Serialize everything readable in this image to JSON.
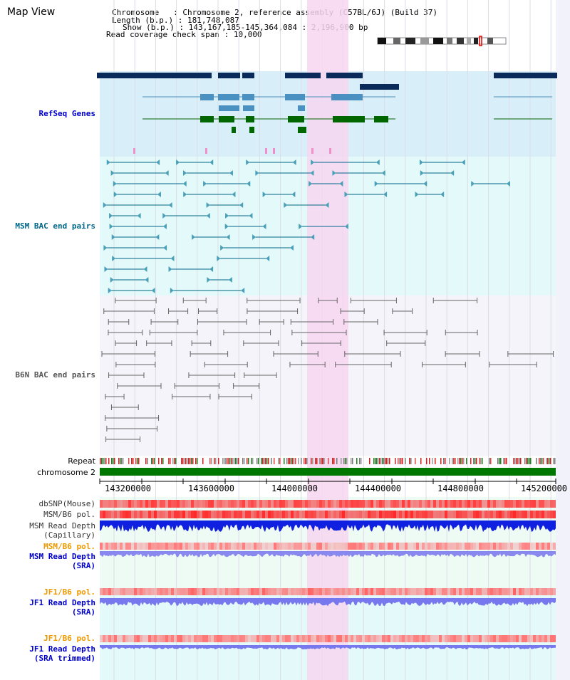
{
  "app": {
    "title": "Map View"
  },
  "info": {
    "chromosome_label": "Chromosome   ",
    "chromosome_value": ": Chromosome 2, reference assembly (C57BL/6J) (Build 37)",
    "length_label": "Length (b.p.)",
    "length_value": ": 181,748,087",
    "show_label": "Show (b.p.)",
    "show_value": ": 143,167,185-145,364,084 : 2,196,900 bp",
    "coverage_label": "Read coverage check span",
    "coverage_value": ": 10,000"
  },
  "tracks": {
    "refseq": {
      "label": "RefSeq Genes",
      "color": "#0000cc"
    },
    "msm_bac": {
      "label": "MSM BAC end pairs",
      "color": "#006688"
    },
    "b6n_bac": {
      "label": "B6N BAC end pairs",
      "color": "#555555"
    },
    "repeat": {
      "label": "Repeat"
    },
    "chromosome": {
      "label": "chromosome 2"
    },
    "dbsnp": {
      "label": "dbSNP(Mouse)",
      "color": "#333333"
    },
    "msm_b6_pol_1": {
      "label": "MSM/B6 pol.",
      "color": "#333333"
    },
    "msm_depth_cap": {
      "label_line1": "MSM Read Depth",
      "label_line2": "(Capillary)",
      "color": "#333333"
    },
    "msm_b6_pol_2": {
      "label": "MSM/B6 pol.",
      "color": "#ee9900"
    },
    "msm_depth_sra": {
      "label_line1": "MSM Read Depth",
      "label_line2": "(SRA)",
      "color": "#0000cc"
    },
    "jf1_b6_pol_1": {
      "label": "JF1/B6 pol.",
      "color": "#ee9900"
    },
    "jf1_depth_sra": {
      "label_line1": "JF1 Read Depth",
      "label_line2": "(SRA)",
      "color": "#0000cc"
    },
    "jf1_b6_pol_2": {
      "label": "JF1/B6 pol.",
      "color": "#ee9900"
    },
    "jf1_depth_trim": {
      "label_line1": "JF1 Read Depth",
      "label_line2": "(SRA trimmed)",
      "color": "#0000cc"
    }
  },
  "axis": {
    "ticks": [
      "143200000",
      "143600000",
      "144000000",
      "144400000",
      "144800000",
      "145200000"
    ]
  },
  "colors": {
    "refseq_bg": "#d8effa",
    "msm_bg": "#e4fafa",
    "b6n_bg": "#f4f4fa",
    "highlight": "#f7d6f0",
    "chromosome_bar": "#007700",
    "gene_dark": "#0a2a5a",
    "gene_mid": "#4a90c0",
    "gene_green": "#006600"
  }
}
